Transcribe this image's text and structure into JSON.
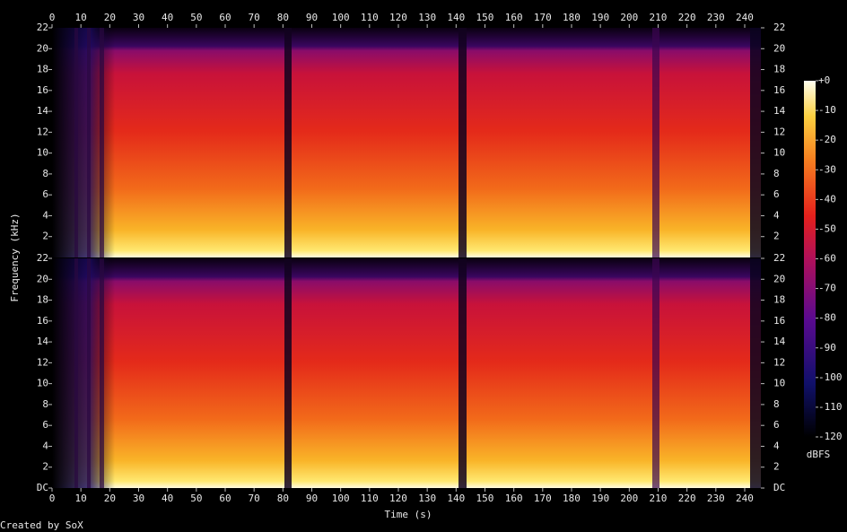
{
  "chart_data": {
    "type": "spectrogram",
    "xlabel": "Time (s)",
    "ylabel": "Frequency (kHz)",
    "xlim": [
      0,
      245.6
    ],
    "xticks": [
      0,
      10,
      20,
      30,
      40,
      50,
      60,
      70,
      80,
      90,
      100,
      110,
      120,
      130,
      140,
      150,
      160,
      170,
      180,
      190,
      200,
      210,
      220,
      230,
      240
    ],
    "panels": [
      {
        "ylim": [
          0,
          22
        ],
        "yticks": [
          2,
          4,
          6,
          8,
          10,
          12,
          14,
          16,
          18,
          20,
          22
        ]
      },
      {
        "ylim": [
          0,
          22
        ],
        "yticks": [
          {
            "value": 0,
            "label": "DC"
          },
          2,
          4,
          6,
          8,
          10,
          12,
          14,
          16,
          18,
          20,
          22
        ]
      }
    ],
    "colorbar": {
      "label": "dBFS",
      "lim": [
        -120,
        0
      ],
      "ticks": [
        {
          "value": 0,
          "label": "+0"
        },
        -10,
        -20,
        -30,
        -40,
        -50,
        -60,
        -70,
        -80,
        -90,
        -100,
        -110,
        -120
      ]
    },
    "credit": "Created by SoX"
  }
}
